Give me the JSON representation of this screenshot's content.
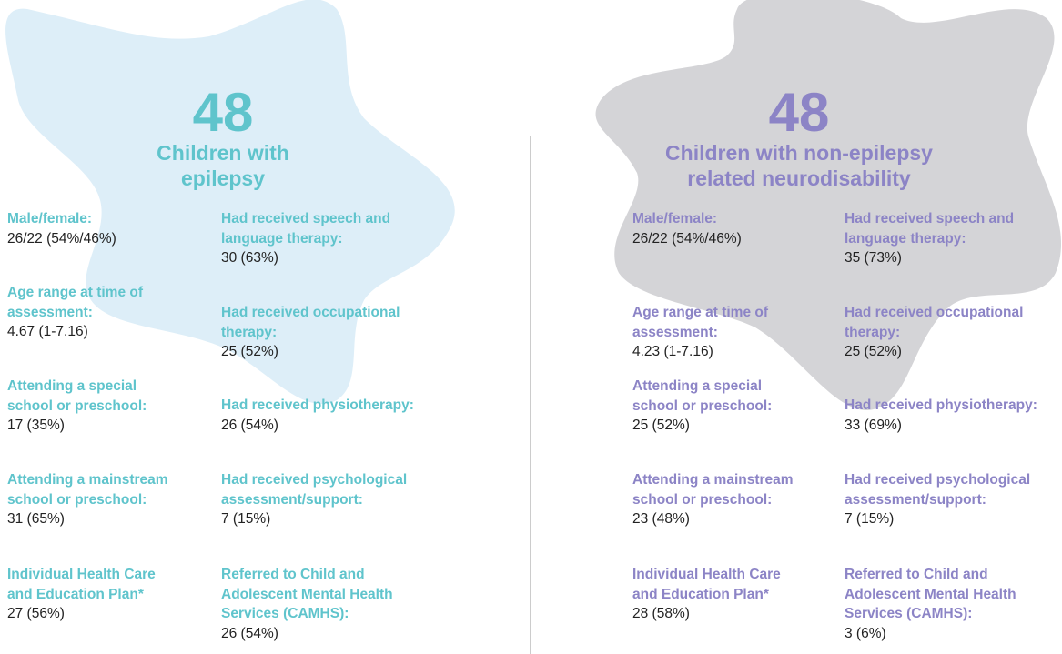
{
  "panels": [
    {
      "number": "48",
      "title": [
        "Children with",
        "epilepsy"
      ],
      "columns": [
        [
          {
            "label": [
              "Male/female:"
            ],
            "value": "26/22 (54%/46%)"
          },
          {
            "label": [
              "Age range at time of",
              "assessment:"
            ],
            "value": "4.67 (1-7.16)"
          },
          {
            "label": [
              "Attending a special",
              "school or preschool:"
            ],
            "value": "17 (35%)"
          },
          {
            "label": [
              "Attending a mainstream",
              "school or preschool:"
            ],
            "value": "31 (65%)"
          },
          {
            "label": [
              "Individual Health Care",
              "and Education Plan*"
            ],
            "value": "27 (56%)"
          }
        ],
        [
          {
            "label": [
              "Had received speech and",
              "language therapy:"
            ],
            "value": "30 (63%)"
          },
          {
            "label": [
              "Had received occupational",
              "therapy:"
            ],
            "value": "25 (52%)"
          },
          {
            "label": [
              "Had received physiotherapy:"
            ],
            "value": "26 (54%)"
          },
          {
            "label": [
              "Had received psychological",
              "assessment/support:"
            ],
            "value": "7 (15%)"
          },
          {
            "label": [
              "Referred to Child and",
              "Adolescent Mental Health",
              "Services (CAMHS):"
            ],
            "value": "26 (54%)"
          }
        ]
      ]
    },
    {
      "number": "48",
      "title": [
        "Children with non-epilepsy",
        "related neurodisability"
      ],
      "columns": [
        [
          {
            "label": [
              "Male/female:"
            ],
            "value": "26/22 (54%/46%)"
          },
          {
            "label": [
              "Age range at time of",
              "assessment:"
            ],
            "value": "4.23 (1-7.16)"
          },
          {
            "label": [
              "Attending a special",
              "school or preschool:"
            ],
            "value": "25 (52%)"
          },
          {
            "label": [
              "Attending a mainstream",
              "school or preschool:"
            ],
            "value": "23 (48%)"
          },
          {
            "label": [
              "Individual Health Care",
              "and Education Plan*"
            ],
            "value": "28 (58%)"
          }
        ],
        [
          {
            "label": [
              "Had received speech and",
              "language therapy:"
            ],
            "value": "35 (73%)"
          },
          {
            "label": [
              "Had received occupational",
              "therapy:"
            ],
            "value": "25 (52%)"
          },
          {
            "label": [
              "Had received physiotherapy:"
            ],
            "value": "33 (69%)"
          },
          {
            "label": [
              "Had received psychological",
              "assessment/support:"
            ],
            "value": "7 (15%)"
          },
          {
            "label": [
              "Referred to Child and",
              "Adolescent Mental Health",
              "Services (CAMHS):"
            ],
            "value": "3 (6%)"
          }
        ]
      ]
    }
  ]
}
